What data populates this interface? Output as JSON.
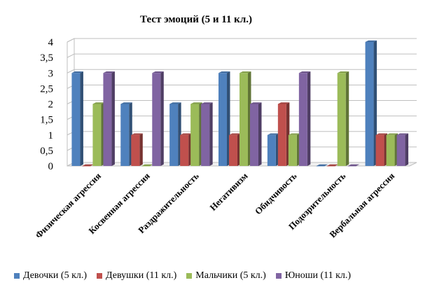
{
  "chart_data": {
    "type": "bar",
    "title": "Тест эмоций (5 и 11 кл.)",
    "xlabel": "",
    "ylabel": "",
    "ylim": [
      0,
      4
    ],
    "yticks": [
      "0",
      "0,5",
      "1",
      "1,5",
      "2",
      "2,5",
      "3",
      "3,5",
      "4"
    ],
    "grid": true,
    "legend_position": "bottom",
    "categories": [
      "Физическая агрессия",
      "Косвенная агрессия",
      "Раздражительность",
      "Негативизм",
      "Обидчивость",
      "Подозрительность",
      "Вербальная агрессия"
    ],
    "series": [
      {
        "name": "Девочки (5 кл.)",
        "color": "#4F81BD",
        "values": [
          3,
          2,
          2,
          3,
          1,
          0,
          4
        ]
      },
      {
        "name": "Девушки (11 кл.)",
        "color": "#C0504D",
        "values": [
          0,
          1,
          1,
          1,
          2,
          0,
          1
        ]
      },
      {
        "name": "Мальчики (5 кл.)",
        "color": "#9BBB59",
        "values": [
          2,
          0,
          2,
          3,
          1,
          3,
          1
        ]
      },
      {
        "name": "Юноши (11 кл.)",
        "color": "#8064A2",
        "values": [
          3,
          3,
          2,
          2,
          3,
          0,
          1
        ]
      }
    ]
  }
}
